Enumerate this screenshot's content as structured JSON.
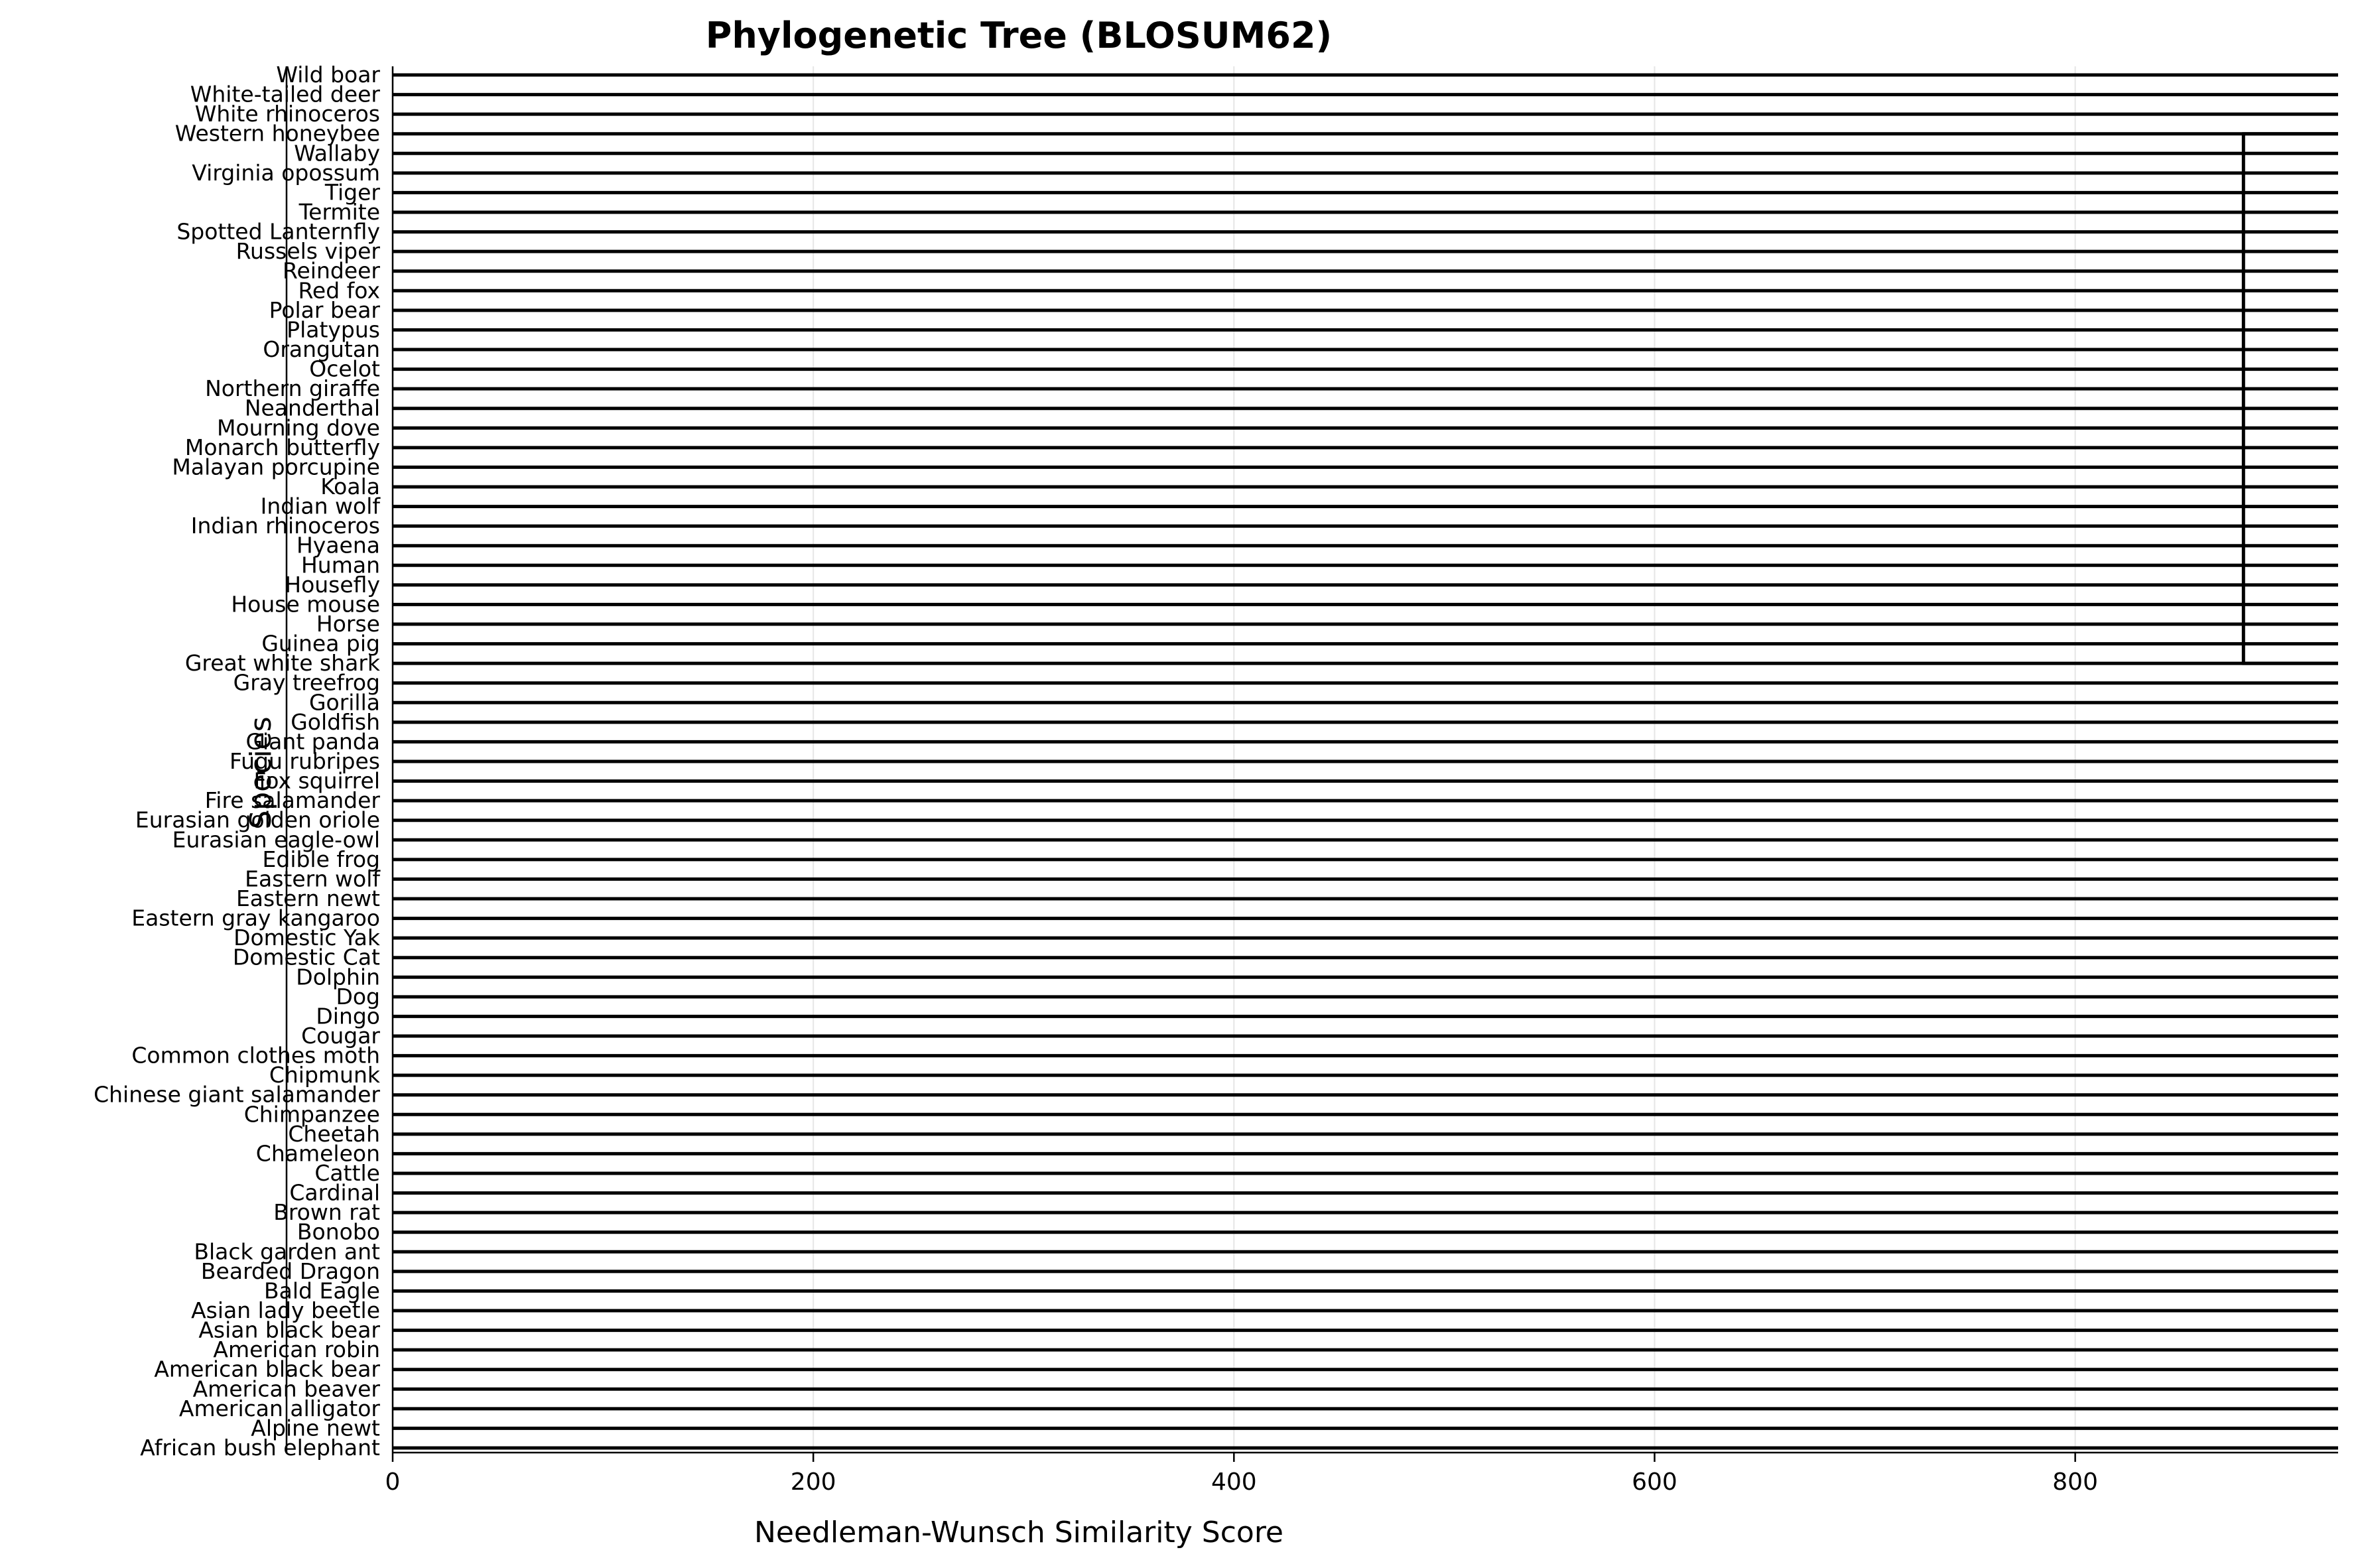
{
  "chart_data": {
    "type": "dendrogram",
    "title": "Phylogenetic Tree (BLOSUM62)",
    "xlabel": "Needleman-Wunsch Similarity Score",
    "ylabel": "Species",
    "xlim": [
      0,
      925
    ],
    "xticks": [
      0,
      200,
      400,
      600,
      800
    ],
    "grid": "vertical",
    "leaves": [
      "Wild boar",
      "White-tailed deer",
      "White rhinoceros",
      "Western honeybee",
      "Wallaby",
      "Virginia opossum",
      "Tiger",
      "Termite",
      "Spotted Lanternfly",
      "Russels viper",
      "Reindeer",
      "Red fox",
      "Polar bear",
      "Platypus",
      "Orangutan",
      "Ocelot",
      "Northern giraffe",
      "Neanderthal",
      "Mourning dove",
      "Monarch butterfly",
      "Malayan porcupine",
      "Koala",
      "Indian wolf",
      "Indian rhinoceros",
      "Hyaena",
      "Human",
      "Housefly",
      "House mouse",
      "Horse",
      "Guinea pig",
      "Great white shark",
      "Gray treefrog",
      "Gorilla",
      "Goldfish",
      "Giant panda",
      "Fugu rubripes",
      "Fox squirrel",
      "Fire salamander",
      "Eurasian golden oriole",
      "Eurasian eagle-owl",
      "Edible frog",
      "Eastern wolf",
      "Eastern newt",
      "Eastern gray kangaroo",
      "Domestic Yak",
      "Domestic Cat",
      "Dolphin",
      "Dog",
      "Dingo",
      "Cougar",
      "Common clothes moth",
      "Chipmunk",
      "Chinese giant salamander",
      "Chimpanzee",
      "Cheetah",
      "Chameleon",
      "Cattle",
      "Cardinal",
      "Brown rat",
      "Bonobo",
      "Black garden ant",
      "Bearded Dragon",
      "Bald Eagle",
      "Asian lady beetle",
      "Asian black bear",
      "American robin",
      "American black bear",
      "American beaver",
      "American alligator",
      "Alpine newt",
      "African bush elephant"
    ],
    "merge_score": 880,
    "merge_between": [
      "Western honeybee",
      "Great white shark"
    ]
  }
}
